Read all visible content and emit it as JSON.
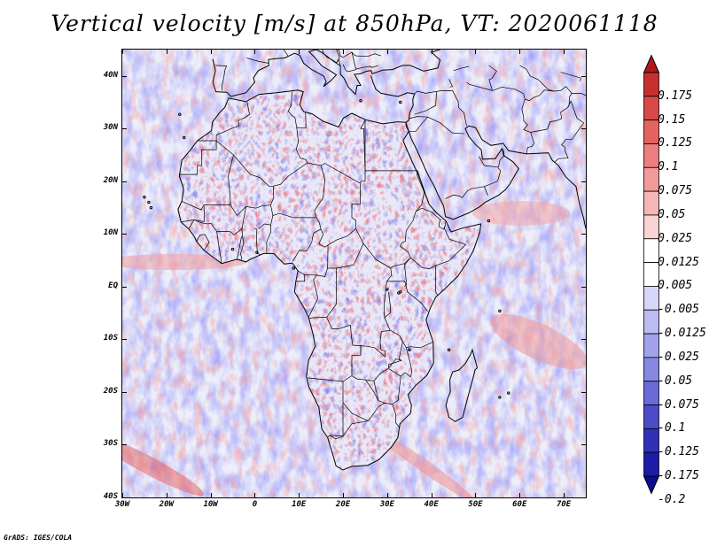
{
  "title": "Vertical velocity [m/s] at 850hPa, VT: 2020061118",
  "footer": "GrADS: IGES/COLA",
  "map": {
    "lon_range": [
      -30,
      75
    ],
    "lat_range": [
      -40,
      45
    ],
    "lat_labels": [
      "40N",
      "30N",
      "20N",
      "10N",
      "EQ",
      "10S",
      "20S",
      "30S",
      "40S"
    ],
    "lat_values": [
      40,
      30,
      20,
      10,
      0,
      -10,
      -20,
      -30,
      -40
    ],
    "lon_labels": [
      "30W",
      "20W",
      "10W",
      "0",
      "10E",
      "20E",
      "30E",
      "40E",
      "50E",
      "60E",
      "70E"
    ],
    "lon_values": [
      -30,
      -20,
      -10,
      0,
      10,
      20,
      30,
      40,
      50,
      60,
      70
    ]
  },
  "colorbar": {
    "levels": [
      "0.175",
      "0.15",
      "0.125",
      "0.1",
      "0.075",
      "0.05",
      "0.025",
      "0.0125",
      "0.005",
      "-0.005",
      "-0.0125",
      "-0.025",
      "-0.05",
      "-0.075",
      "-0.1",
      "-0.125",
      "-0.175",
      "-0.2"
    ],
    "colors": [
      "#b01818",
      "#c83030",
      "#d84848",
      "#e46262",
      "#ec7e7e",
      "#f29a9a",
      "#f6b6b6",
      "#fad2d2",
      "#ffffff",
      "#ffffff",
      "#d6d6f8",
      "#bcbcf2",
      "#a2a2ea",
      "#8888e2",
      "#6a6ad8",
      "#4c4cc8",
      "#3030b8",
      "#1c1ca6",
      "#0c0c90"
    ]
  },
  "palette": {
    "frame": "#000000",
    "coast": "#000000",
    "background": "#eef0fb"
  }
}
